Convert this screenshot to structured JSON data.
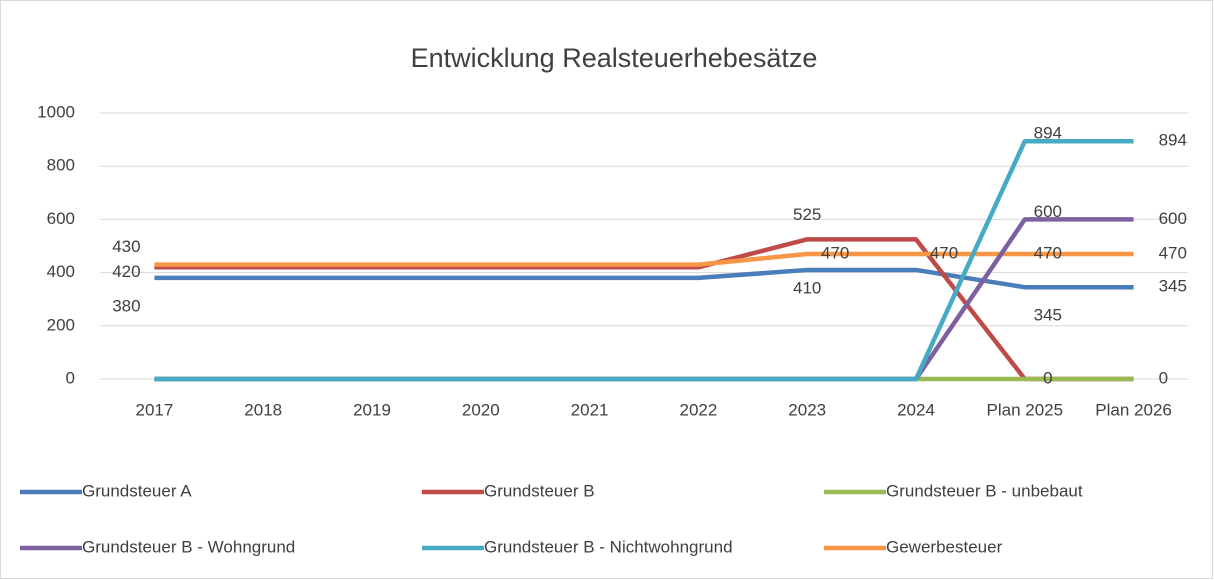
{
  "chart_data": {
    "type": "line",
    "title": "Entwicklung Realsteuerhebesätze",
    "categories": [
      "2017",
      "2018",
      "2019",
      "2020",
      "2021",
      "2022",
      "2023",
      "2024",
      "Plan 2025",
      "Plan 2026"
    ],
    "ylim": [
      0,
      1000
    ],
    "yticks": [
      0,
      200,
      400,
      600,
      800,
      1000
    ],
    "grid": true,
    "legend": "bottom",
    "series": [
      {
        "name": "Grundsteuer A",
        "color": "#4a7ebb",
        "values": [
          380,
          380,
          380,
          380,
          380,
          380,
          410,
          410,
          345,
          345
        ],
        "value_labels": [
          "380",
          null,
          null,
          null,
          null,
          null,
          "410",
          null,
          "345",
          "345"
        ]
      },
      {
        "name": "Grundsteuer B",
        "color": "#be4b48",
        "values": [
          420,
          420,
          420,
          420,
          420,
          420,
          525,
          525,
          0,
          0
        ],
        "value_labels": [
          "420",
          null,
          null,
          null,
          null,
          null,
          "525",
          null,
          "0",
          "0"
        ]
      },
      {
        "name": "Grundsteuer B - unbebaut",
        "color": "#98b954",
        "values": [
          0,
          0,
          0,
          0,
          0,
          0,
          0,
          0,
          0,
          0
        ]
      },
      {
        "name": "Grundsteuer B - Wohngrund",
        "color": "#7d60a0",
        "values": [
          0,
          0,
          0,
          0,
          0,
          0,
          0,
          0,
          600,
          600
        ],
        "value_labels": [
          null,
          null,
          null,
          null,
          null,
          null,
          null,
          null,
          "600",
          "600"
        ]
      },
      {
        "name": "Grundsteuer B - Nichtwohngrund",
        "color": "#46aac5",
        "values": [
          0,
          0,
          0,
          0,
          0,
          0,
          0,
          0,
          894,
          894
        ],
        "value_labels": [
          null,
          null,
          null,
          null,
          null,
          null,
          null,
          null,
          "894",
          "894"
        ]
      },
      {
        "name": "Gewerbesteuer",
        "color": "#f79646",
        "values": [
          430,
          430,
          430,
          430,
          430,
          430,
          470,
          470,
          470,
          470
        ],
        "value_labels": [
          "430",
          null,
          null,
          null,
          null,
          null,
          "470",
          "470",
          "470",
          "470"
        ]
      }
    ]
  }
}
